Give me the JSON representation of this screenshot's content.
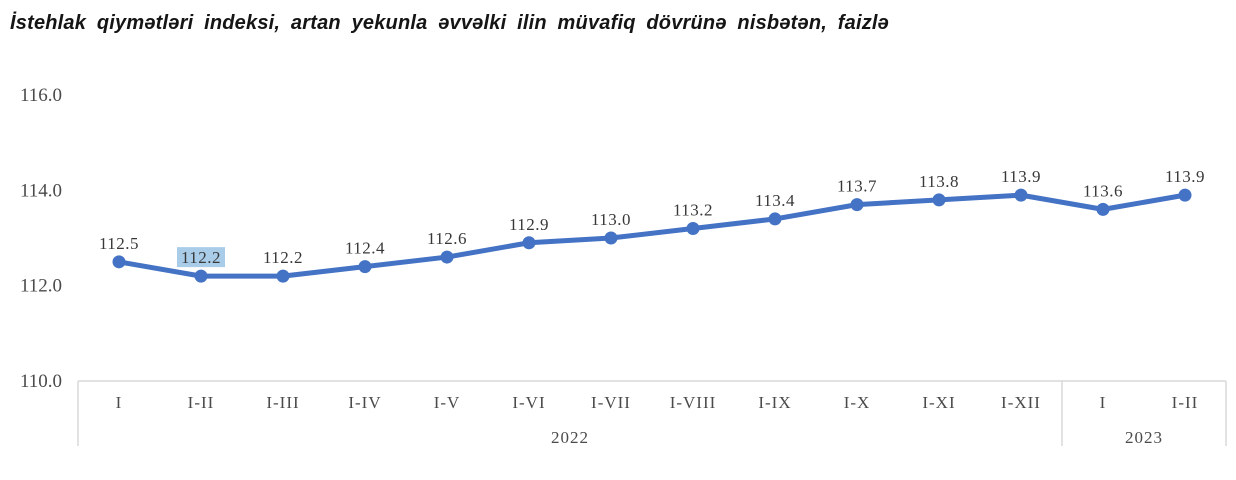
{
  "chart_data": {
    "type": "line",
    "title": "İstehlak qiymətləri indeksi, artan yekunla əvvəlki ilin müvafiq dövrünə nisbətən, faizlə",
    "categories": [
      "I",
      "I-II",
      "I-III",
      "I-IV",
      "I-V",
      "I-VI",
      "I-VII",
      "I-VIII",
      "I-IX",
      "I-X",
      "I-XI",
      "I-XII",
      "I",
      "I-II"
    ],
    "category_groups": [
      {
        "label": "2022",
        "count": 12
      },
      {
        "label": "2023",
        "count": 2
      }
    ],
    "values": [
      112.5,
      112.2,
      112.2,
      112.4,
      112.6,
      112.9,
      113.0,
      113.2,
      113.4,
      113.7,
      113.8,
      113.9,
      113.6,
      113.9
    ],
    "labels": [
      "112.5",
      "112.2",
      "112.2",
      "112.4",
      "112.6",
      "112.9",
      "113.0",
      "113.2",
      "113.4",
      "113.7",
      "113.8",
      "113.9",
      "113.6",
      "113.9"
    ],
    "highlighted_label_index": 1,
    "ylim": [
      110.0,
      116.0
    ],
    "yticks": [
      "110.0",
      "112.0",
      "114.0",
      "116.0"
    ],
    "grid": false,
    "legend": "none",
    "line_color": "#4472C4",
    "marker_color": "#4472C4",
    "highlight_color": "#A9CDE9",
    "axis_line_color": "#D9D9D9",
    "axis_text_color": "#4a4a4a",
    "data_label_color": "#383838"
  }
}
